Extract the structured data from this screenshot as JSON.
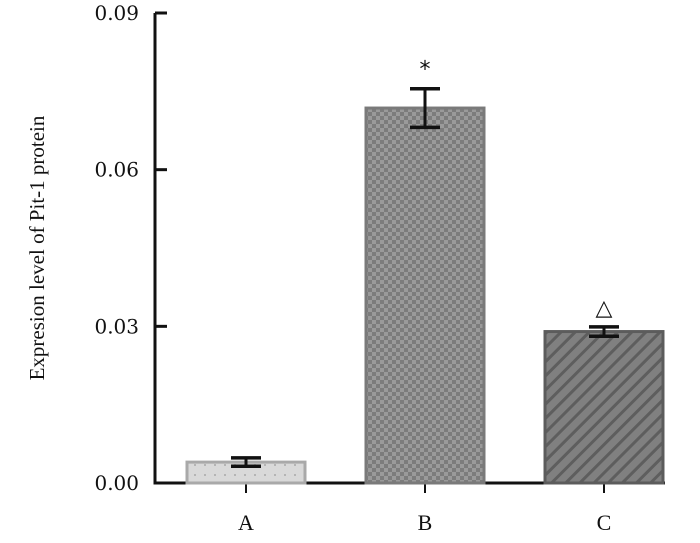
{
  "chart_data": {
    "type": "bar",
    "title": "",
    "xlabel": "",
    "ylabel": "Expresion level of Pit-1 protein",
    "ylim": [
      0,
      0.09
    ],
    "yticks": [
      0,
      0.03,
      0.06,
      0.09
    ],
    "ytick_labels": [
      "0.00",
      "0.03",
      "0.06",
      "0.09"
    ],
    "categories": [
      "A",
      "B",
      "C"
    ],
    "values": [
      0.004,
      0.0718,
      0.029
    ],
    "error": [
      0.0008,
      0.0037,
      0.0009
    ],
    "annotations": [
      "",
      "*",
      "△"
    ],
    "grid": false,
    "bar_colors": [
      "#d8d8d8",
      "#8c8c8c",
      "#7a7a7a"
    ],
    "bar_patterns": [
      "dots",
      "checker",
      "diagonal"
    ]
  }
}
